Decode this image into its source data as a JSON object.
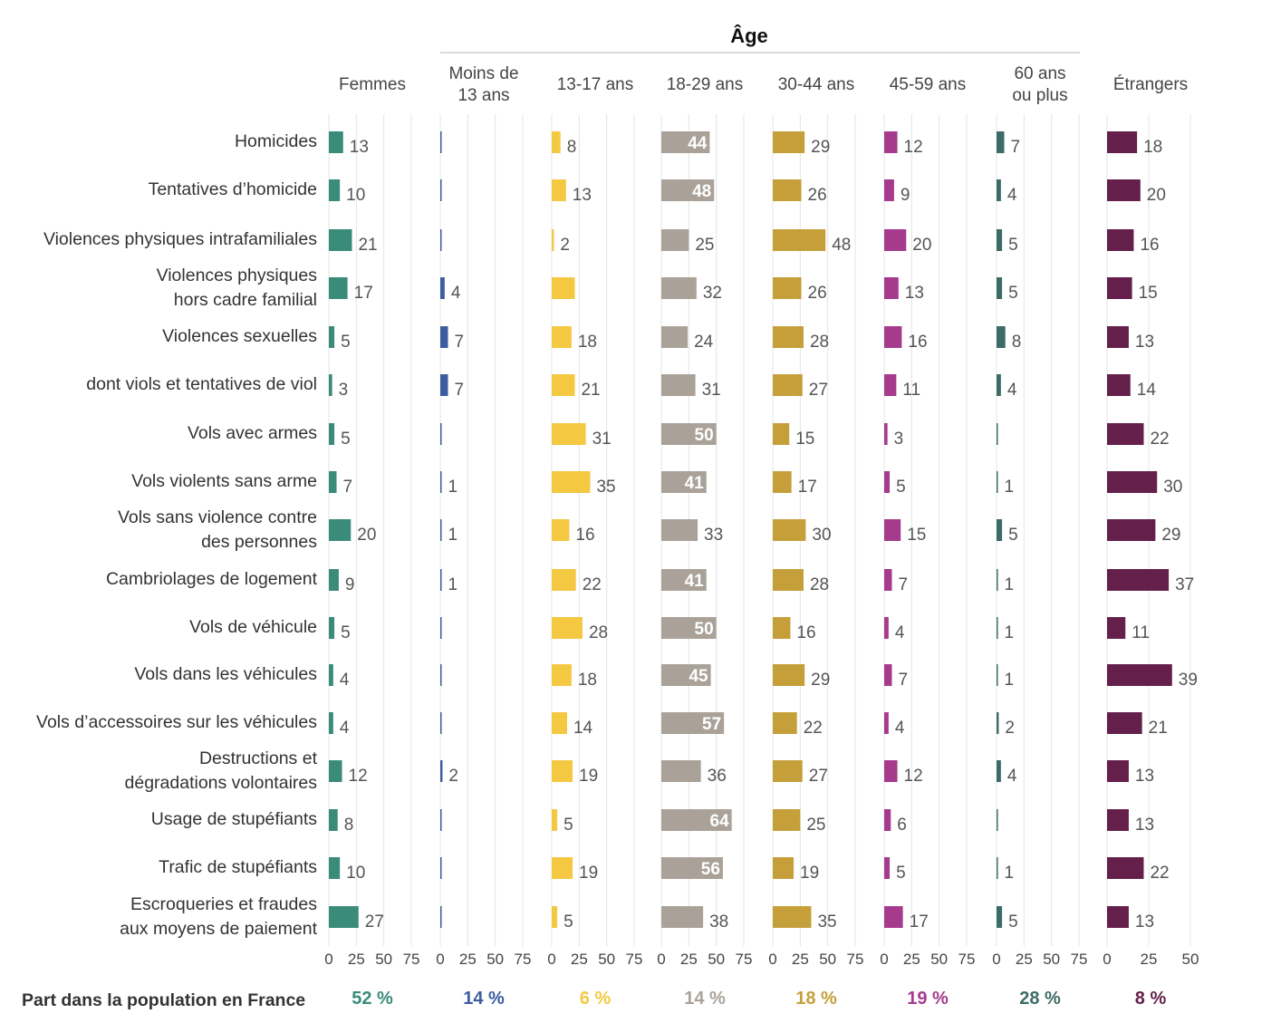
{
  "chart_data": {
    "type": "bar",
    "orientation": "horizontal",
    "group_title": "Âge",
    "categories": [
      [
        "Homicides"
      ],
      [
        "Tentatives d’homicide"
      ],
      [
        "Violences physiques intrafamiliales"
      ],
      [
        "Violences physiques",
        "hors cadre familial"
      ],
      [
        "Violences sexuelles"
      ],
      [
        "dont viols et tentatives de viol"
      ],
      [
        "Vols avec armes"
      ],
      [
        "Vols violents sans arme"
      ],
      [
        "Vols sans violence contre",
        "des personnes"
      ],
      [
        "Cambriolages de logement"
      ],
      [
        "Vols de véhicule"
      ],
      [
        "Vols dans les véhicules"
      ],
      [
        "Vols d’accessoires sur les véhicules"
      ],
      [
        "Destructions et",
        "dégradations volontaires"
      ],
      [
        "Usage de stupéfiants"
      ],
      [
        "Trafic de stupéfiants"
      ],
      [
        "Escroqueries et fraudes",
        "aux moyens de paiement"
      ]
    ],
    "series": [
      {
        "name": [
          "Femmes"
        ],
        "color": "#3a8b7a",
        "xlim": [
          0,
          75
        ],
        "ticks": [
          "0",
          "25",
          "50",
          "75"
        ],
        "values": [
          13,
          10,
          21,
          17,
          5,
          3,
          5,
          7,
          20,
          9,
          5,
          4,
          4,
          12,
          8,
          10,
          27
        ],
        "labels": [
          "13",
          "10",
          "21",
          "17",
          "5",
          "3",
          "5",
          "7",
          "20",
          "9",
          "5",
          "4",
          "4",
          "12",
          "8",
          "10",
          "27"
        ],
        "population_share": "52 %"
      },
      {
        "name": [
          "Moins de",
          "13 ans"
        ],
        "color": "#3d5da0",
        "xlim": [
          0,
          75
        ],
        "ticks": [
          "0",
          "25",
          "50",
          "75"
        ],
        "values": [
          0.5,
          0.5,
          0.5,
          4,
          7,
          7,
          0.5,
          1,
          1,
          1,
          0.5,
          0.5,
          0.5,
          2,
          0.5,
          0.5,
          0.5
        ],
        "labels": [
          "",
          "",
          "",
          "4",
          "7",
          "7",
          "",
          "1",
          "1",
          "1",
          "",
          "",
          "",
          "2",
          "",
          "",
          ""
        ],
        "population_share": "14 %"
      },
      {
        "name": [
          "13-17 ans"
        ],
        "color": "#f5c842",
        "xlim": [
          0,
          75
        ],
        "ticks": [
          "0",
          "25",
          "50",
          "75"
        ],
        "values": [
          8,
          13,
          2,
          21,
          18,
          21,
          31,
          35,
          16,
          22,
          28,
          18,
          14,
          19,
          5,
          19,
          5
        ],
        "labels": [
          "8",
          "13",
          "2",
          "",
          "18",
          "21",
          "31",
          "35",
          "16",
          "22",
          "28",
          "18",
          "14",
          "19",
          "5",
          "19",
          "5"
        ],
        "population_share": "6 %"
      },
      {
        "name": [
          "18-29 ans"
        ],
        "color": "#aaa298",
        "xlim": [
          0,
          75
        ],
        "ticks": [
          "0",
          "25",
          "50",
          "75"
        ],
        "values": [
          44,
          48,
          25,
          32,
          24,
          31,
          50,
          41,
          33,
          41,
          50,
          45,
          57,
          36,
          64,
          56,
          38
        ],
        "labels": [
          "44",
          "48",
          "25",
          "32",
          "24",
          "31",
          "50",
          "41",
          "33",
          "41",
          "50",
          "45",
          "57",
          "36",
          "64",
          "56",
          "38"
        ],
        "inside": [
          true,
          true,
          false,
          false,
          false,
          false,
          true,
          true,
          false,
          true,
          true,
          true,
          true,
          false,
          true,
          true,
          false
        ],
        "population_share": "14 %"
      },
      {
        "name": [
          "30-44 ans"
        ],
        "color": "#c59f3a",
        "xlim": [
          0,
          75
        ],
        "ticks": [
          "0",
          "25",
          "50",
          "75"
        ],
        "values": [
          29,
          26,
          48,
          26,
          28,
          27,
          15,
          17,
          30,
          28,
          16,
          29,
          22,
          27,
          25,
          19,
          35
        ],
        "labels": [
          "29",
          "26",
          "48",
          "26",
          "28",
          "27",
          "15",
          "17",
          "30",
          "28",
          "16",
          "29",
          "22",
          "27",
          "25",
          "19",
          "35"
        ],
        "population_share": "18 %"
      },
      {
        "name": [
          "45-59 ans"
        ],
        "color": "#a63a8c",
        "xlim": [
          0,
          75
        ],
        "ticks": [
          "0",
          "25",
          "50",
          "75"
        ],
        "values": [
          12,
          9,
          20,
          13,
          16,
          11,
          3,
          5,
          15,
          7,
          4,
          7,
          4,
          12,
          6,
          5,
          17
        ],
        "labels": [
          "12",
          "9",
          "20",
          "13",
          "16",
          "11",
          "3",
          "5",
          "15",
          "7",
          "4",
          "7",
          "4",
          "12",
          "6",
          "5",
          "17"
        ],
        "population_share": "19 %"
      },
      {
        "name": [
          "60 ans",
          "ou plus"
        ],
        "color": "#3d6b67",
        "xlim": [
          0,
          75
        ],
        "ticks": [
          "0",
          "25",
          "50",
          "75"
        ],
        "values": [
          7,
          4,
          5,
          5,
          8,
          4,
          0.5,
          1,
          5,
          1,
          1,
          1,
          2,
          4,
          0.5,
          1,
          5
        ],
        "labels": [
          "7",
          "4",
          "5",
          "5",
          "8",
          "4",
          "",
          "1",
          "5",
          "1",
          "1",
          "1",
          "2",
          "4",
          "",
          "1",
          "5"
        ],
        "population_share": "28 %"
      },
      {
        "name": [
          "Étrangers"
        ],
        "color": "#641f4a",
        "xlim": [
          0,
          50
        ],
        "ticks": [
          "0",
          "25",
          "50"
        ],
        "values": [
          18,
          20,
          16,
          15,
          13,
          14,
          22,
          30,
          29,
          37,
          11,
          39,
          21,
          13,
          13,
          22,
          13
        ],
        "labels": [
          "18",
          "20",
          "16",
          "15",
          "13",
          "14",
          "22",
          "30",
          "29",
          "37",
          "11",
          "39",
          "21",
          "13",
          "13",
          "22",
          "13"
        ],
        "population_share": "8 %"
      }
    ],
    "footer_label": "Part dans la population en France",
    "grid": true
  }
}
